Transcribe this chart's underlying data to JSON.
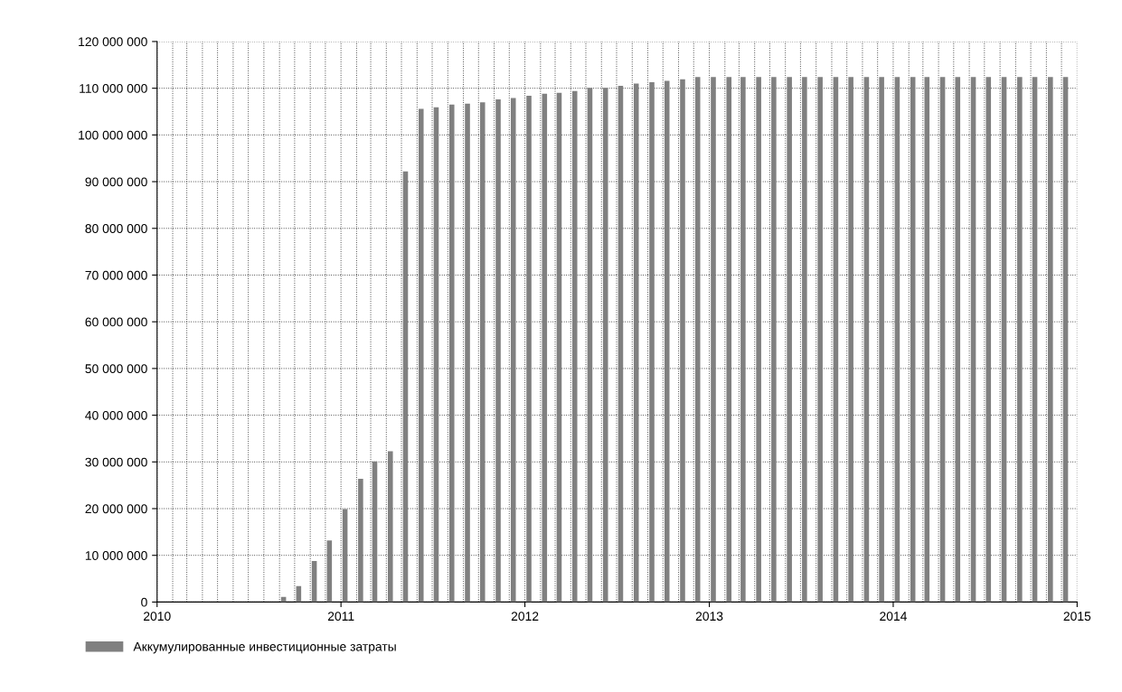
{
  "chart_data": {
    "type": "bar",
    "x": [
      "2010-09",
      "2010-10",
      "2010-11",
      "2010-12",
      "2011-01",
      "2011-02",
      "2011-03",
      "2011-04",
      "2011-05",
      "2011-06",
      "2011-07",
      "2011-08",
      "2011-09",
      "2011-10",
      "2011-11",
      "2011-12",
      "2012-01",
      "2012-02",
      "2012-03",
      "2012-04",
      "2012-05",
      "2012-06",
      "2012-07",
      "2012-08",
      "2012-09",
      "2012-10",
      "2012-11",
      "2012-12",
      "2013-01",
      "2013-02",
      "2013-03",
      "2013-04",
      "2013-05",
      "2013-06",
      "2013-07",
      "2013-08",
      "2013-09",
      "2013-10",
      "2013-11",
      "2013-12",
      "2014-01",
      "2014-02",
      "2014-03",
      "2014-04",
      "2014-05",
      "2014-06",
      "2014-07",
      "2014-08",
      "2014-09",
      "2014-10",
      "2014-11",
      "2014-12"
    ],
    "series": [
      {
        "name": "Аккумулированные инвестиционные затраты",
        "color": "#808080",
        "values": [
          1100000,
          3400000,
          8800000,
          13200000,
          19900000,
          26400000,
          30100000,
          32300000,
          92200000,
          105600000,
          105900000,
          106500000,
          106700000,
          107000000,
          107600000,
          107900000,
          108400000,
          108800000,
          109000000,
          109400000,
          110100000,
          110100000,
          110500000,
          111000000,
          111300000,
          111600000,
          111900000,
          112400000,
          112400000,
          112400000,
          112400000,
          112400000,
          112400000,
          112400000,
          112400000,
          112400000,
          112400000,
          112400000,
          112400000,
          112400000,
          112400000,
          112400000,
          112400000,
          112400000,
          112400000,
          112400000,
          112400000,
          112400000,
          112400000,
          112400000,
          112400000,
          112400000
        ]
      }
    ],
    "xlim": [
      "2010",
      "2015"
    ],
    "xticks": [
      {
        "value": "2010",
        "label": "2010"
      },
      {
        "value": "2011",
        "label": "2011"
      },
      {
        "value": "2012",
        "label": "2012"
      },
      {
        "value": "2013",
        "label": "2013"
      },
      {
        "value": "2014",
        "label": "2014"
      },
      {
        "value": "2015",
        "label": "2015"
      }
    ],
    "ylim": [
      0,
      120000000
    ],
    "yticks": [
      0,
      {
        "value": 10000000,
        "label": "10 000 000"
      },
      {
        "value": 20000000,
        "label": "20 000 000"
      },
      {
        "value": 30000000,
        "label": "30 000 000"
      },
      {
        "value": 40000000,
        "label": "40 000 000"
      },
      {
        "value": 50000000,
        "label": "50 000 000"
      },
      {
        "value": 60000000,
        "label": "60 000 000"
      },
      {
        "value": 70000000,
        "label": "70 000 000"
      },
      {
        "value": 80000000,
        "label": "80 000 000"
      },
      {
        "value": 90000000,
        "label": "90 000 000"
      },
      {
        "value": 100000000,
        "label": "100 000 000"
      },
      {
        "value": 110000000,
        "label": "110 000 000"
      },
      {
        "value": 120000000,
        "label": "120 000 000"
      }
    ],
    "grid": true,
    "legend": "bottom left"
  }
}
